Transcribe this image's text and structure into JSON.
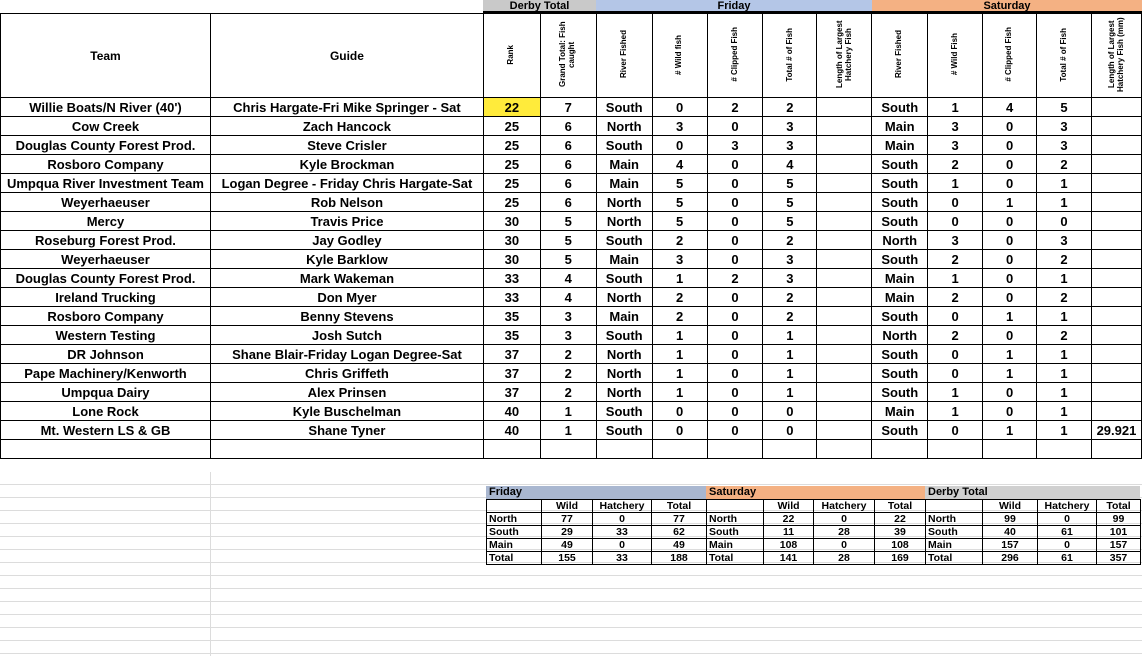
{
  "groups": {
    "derby_total": "Derby Total",
    "friday": "Friday",
    "saturday": "Saturday"
  },
  "colors": {
    "derby": "#c9c9c9",
    "friday": "#b4c6e7",
    "saturday": "#f4b183",
    "highlight": "#ffeb3b",
    "sum_friday": "#a9b7d0"
  },
  "headers": [
    "Team",
    "Guide",
    "Rank",
    "Grand Total: Fish caught",
    "River Fished",
    "# Wild fish",
    "# Clipped Fish",
    "Total # of Fish",
    "Length of Largest Hatchery Fish",
    "River Fished",
    "# Wild Fish",
    "# Clipped Fish",
    "Total # of Fish",
    "Length of Largest Hatchery Fish (mm)"
  ],
  "rows": [
    [
      "Willie Boats/N River (40')",
      "Chris Hargate-Fri   Mike Springer - Sat",
      "22",
      "7",
      "South",
      "0",
      "2",
      "2",
      "",
      "South",
      "1",
      "4",
      "5",
      ""
    ],
    [
      "Cow Creek",
      "Zach Hancock",
      "25",
      "6",
      "North",
      "3",
      "0",
      "3",
      "",
      "Main",
      "3",
      "0",
      "3",
      ""
    ],
    [
      "Douglas County Forest Prod.",
      "Steve Crisler",
      "25",
      "6",
      "South",
      "0",
      "3",
      "3",
      "",
      "Main",
      "3",
      "0",
      "3",
      ""
    ],
    [
      "Rosboro Company",
      "Kyle Brockman",
      "25",
      "6",
      "Main",
      "4",
      "0",
      "4",
      "",
      "South",
      "2",
      "0",
      "2",
      ""
    ],
    [
      "Umpqua River Investment Team",
      "Logan Degree - Friday  Chris Hargate-Sat",
      "25",
      "6",
      "Main",
      "5",
      "0",
      "5",
      "",
      "South",
      "1",
      "0",
      "1",
      ""
    ],
    [
      "Weyerhaeuser",
      "Rob Nelson",
      "25",
      "6",
      "North",
      "5",
      "0",
      "5",
      "",
      "South",
      "0",
      "1",
      "1",
      ""
    ],
    [
      "Mercy",
      "Travis Price",
      "30",
      "5",
      "North",
      "5",
      "0",
      "5",
      "",
      "South",
      "0",
      "0",
      "0",
      ""
    ],
    [
      "Roseburg Forest Prod.",
      "Jay Godley",
      "30",
      "5",
      "South",
      "2",
      "0",
      "2",
      "",
      "North",
      "3",
      "0",
      "3",
      ""
    ],
    [
      "Weyerhaeuser",
      "Kyle Barklow",
      "30",
      "5",
      "Main",
      "3",
      "0",
      "3",
      "",
      "South",
      "2",
      "0",
      "2",
      ""
    ],
    [
      "Douglas County Forest Prod.",
      "Mark Wakeman",
      "33",
      "4",
      "South",
      "1",
      "2",
      "3",
      "",
      "Main",
      "1",
      "0",
      "1",
      ""
    ],
    [
      "Ireland Trucking",
      "Don Myer",
      "33",
      "4",
      "North",
      "2",
      "0",
      "2",
      "",
      "Main",
      "2",
      "0",
      "2",
      ""
    ],
    [
      "Rosboro Company",
      "Benny Stevens",
      "35",
      "3",
      "Main",
      "2",
      "0",
      "2",
      "",
      "South",
      "0",
      "1",
      "1",
      ""
    ],
    [
      "Western Testing",
      "Josh Sutch",
      "35",
      "3",
      "South",
      "1",
      "0",
      "1",
      "",
      "North",
      "2",
      "0",
      "2",
      ""
    ],
    [
      "DR Johnson",
      "Shane Blair-Friday   Logan Degree-Sat",
      "37",
      "2",
      "North",
      "1",
      "0",
      "1",
      "",
      "South",
      "0",
      "1",
      "1",
      ""
    ],
    [
      "Pape Machinery/Kenworth",
      "Chris Griffeth",
      "37",
      "2",
      "North",
      "1",
      "0",
      "1",
      "",
      "South",
      "0",
      "1",
      "1",
      ""
    ],
    [
      "Umpqua Dairy",
      "Alex Prinsen",
      "37",
      "2",
      "North",
      "1",
      "0",
      "1",
      "",
      "South",
      "1",
      "0",
      "1",
      ""
    ],
    [
      "Lone Rock",
      "Kyle Buschelman",
      "40",
      "1",
      "South",
      "0",
      "0",
      "0",
      "",
      "Main",
      "1",
      "0",
      "1",
      ""
    ],
    [
      "Mt. Western LS & GB",
      "Shane Tyner",
      "40",
      "1",
      "South",
      "0",
      "0",
      "0",
      "",
      "South",
      "0",
      "1",
      "1",
      "29.921"
    ]
  ],
  "summary": {
    "sections": [
      "Friday",
      "Saturday",
      "Derby Total"
    ],
    "columns": [
      "Wild",
      "Hatchery",
      "Total"
    ],
    "rows": [
      [
        "North",
        "77",
        "0",
        "77",
        "North",
        "22",
        "0",
        "22",
        "North",
        "99",
        "0",
        "99"
      ],
      [
        "South",
        "29",
        "33",
        "62",
        "South",
        "11",
        "28",
        "39",
        "South",
        "40",
        "61",
        "101"
      ],
      [
        "Main",
        "49",
        "0",
        "49",
        "Main",
        "108",
        "0",
        "108",
        "Main",
        "157",
        "0",
        "157"
      ],
      [
        "Total",
        "155",
        "33",
        "188",
        "Total",
        "141",
        "28",
        "169",
        "Total",
        "296",
        "61",
        "357"
      ]
    ]
  }
}
